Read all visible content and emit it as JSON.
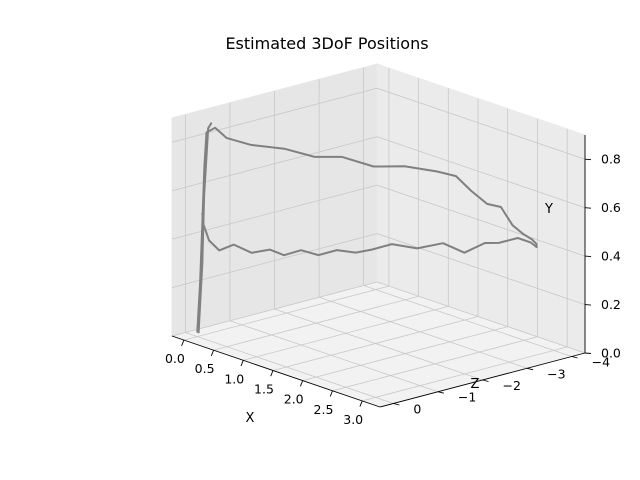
{
  "chart_data": {
    "type": "line3d",
    "title": "Estimated 3DoF Positions",
    "xlabel": "X",
    "ylabel": "Y",
    "zlabel": "Z",
    "xlim": [
      -0.2,
      3.3
    ],
    "ylim": [
      0.0,
      0.9
    ],
    "zlim": [
      -4.3,
      0.3
    ],
    "xticks": [
      "0.0",
      "0.5",
      "1.0",
      "1.5",
      "2.0",
      "2.5",
      "3.0"
    ],
    "yticks": [
      "0.0",
      "0.2",
      "0.4",
      "0.6",
      "0.8"
    ],
    "zticks": [
      "0",
      "−1",
      "−2",
      "−3",
      "−4"
    ],
    "grid": true,
    "line_color": "#808080",
    "series": [
      {
        "points": [
          [
            0.0,
            0.02,
            0.0
          ],
          [
            0.01,
            0.22,
            -0.05
          ],
          [
            0.01,
            0.46,
            -0.1
          ],
          [
            0.03,
            0.7,
            -0.12
          ],
          [
            0.05,
            0.84,
            -0.14
          ],
          [
            0.12,
            0.86,
            -0.24
          ],
          [
            0.08,
            0.8,
            -0.55
          ],
          [
            0.32,
            0.78,
            -0.78
          ],
          [
            0.6,
            0.77,
            -1.15
          ],
          [
            0.85,
            0.74,
            -1.5
          ],
          [
            1.05,
            0.74,
            -1.85
          ],
          [
            1.28,
            0.7,
            -2.25
          ],
          [
            1.5,
            0.7,
            -2.65
          ],
          [
            1.75,
            0.68,
            -3.05
          ],
          [
            1.88,
            0.66,
            -3.3
          ],
          [
            2.0,
            0.6,
            -3.48
          ],
          [
            2.14,
            0.55,
            -3.65
          ],
          [
            2.26,
            0.54,
            -3.8
          ],
          [
            2.38,
            0.47,
            -3.9
          ],
          [
            2.5,
            0.44,
            -3.98
          ],
          [
            2.58,
            0.42,
            -4.07
          ],
          [
            2.6,
            0.4,
            -4.14
          ],
          [
            2.56,
            0.38,
            -4.2
          ],
          [
            2.52,
            0.4,
            -4.12
          ],
          [
            2.44,
            0.42,
            -3.94
          ],
          [
            2.3,
            0.4,
            -3.7
          ],
          [
            2.2,
            0.4,
            -3.52
          ],
          [
            2.05,
            0.36,
            -3.26
          ],
          [
            1.9,
            0.4,
            -2.98
          ],
          [
            1.72,
            0.38,
            -2.64
          ],
          [
            1.55,
            0.4,
            -2.3
          ],
          [
            1.42,
            0.38,
            -2.02
          ],
          [
            1.32,
            0.37,
            -1.8
          ],
          [
            1.18,
            0.38,
            -1.56
          ],
          [
            1.05,
            0.36,
            -1.32
          ],
          [
            0.92,
            0.38,
            -1.1
          ],
          [
            0.8,
            0.36,
            -0.88
          ],
          [
            0.74,
            0.39,
            -0.64
          ],
          [
            0.63,
            0.38,
            -0.38
          ],
          [
            0.54,
            0.42,
            -0.1
          ],
          [
            0.46,
            0.4,
            0.12
          ],
          [
            0.38,
            0.44,
            0.24
          ],
          [
            0.3,
            0.5,
            0.26
          ],
          [
            0.25,
            0.54,
            0.22
          ]
        ]
      },
      {
        "points": [
          [
            0.03,
            0.02,
            0.01
          ],
          [
            0.04,
            0.3,
            -0.06
          ],
          [
            0.04,
            0.58,
            -0.1
          ],
          [
            0.08,
            0.86,
            -0.14
          ],
          [
            0.1,
            0.88,
            -0.18
          ]
        ]
      }
    ]
  }
}
